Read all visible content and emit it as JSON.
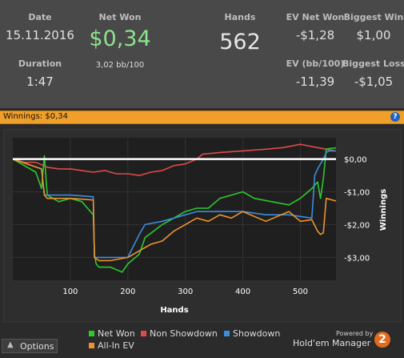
{
  "stats": {
    "date": {
      "label": "Date",
      "value": "15.11.2016"
    },
    "duration": {
      "label": "Duration",
      "value": "1:47"
    },
    "net_won": {
      "label": "Net Won",
      "value": "$0,34",
      "sub": "3,02 bb/100",
      "color": "#8fe28f"
    },
    "hands": {
      "label": "Hands",
      "value": "562"
    },
    "ev_net_won": {
      "label": "EV Net Won",
      "value": "-$1,28"
    },
    "ev_bb100": {
      "label": "EV (bb/100)",
      "value": "-11,39"
    },
    "biggest_win": {
      "label": "Biggest Win",
      "value": "$1,00"
    },
    "biggest_loss": {
      "label": "Biggest Loss",
      "value": "-$1,05"
    }
  },
  "bar": {
    "title": "Winnings: $0,34",
    "help_icon": "question-icon",
    "help_text": "?",
    "color": "#f0a02a"
  },
  "chart_data": {
    "type": "line",
    "xlabel": "Hands",
    "ylabel": "Winnings",
    "xlim": [
      0,
      562
    ],
    "ylim": [
      -3.7,
      0.65
    ],
    "x_ticks": [
      100,
      200,
      300,
      400,
      500
    ],
    "y_ticks": [
      0,
      -1,
      -2,
      -3
    ],
    "y_tick_labels": [
      "$0,00",
      "-$1,00",
      "-$2,00",
      "-$3,00"
    ],
    "zero_line": true,
    "series": [
      {
        "name": "Non Showdown",
        "color": "#e04a4a",
        "x": [
          0,
          20,
          40,
          60,
          80,
          100,
          120,
          140,
          160,
          180,
          200,
          220,
          240,
          260,
          280,
          300,
          320,
          330,
          360,
          400,
          440,
          470,
          500,
          530,
          545,
          562
        ],
        "y": [
          0,
          -0.1,
          -0.1,
          -0.25,
          -0.3,
          -0.3,
          -0.35,
          -0.4,
          -0.35,
          -0.45,
          -0.45,
          -0.5,
          -0.4,
          -0.35,
          -0.2,
          -0.15,
          0,
          0.15,
          0.2,
          0.25,
          0.3,
          0.35,
          0.45,
          0.35,
          0.3,
          0.25
        ]
      },
      {
        "name": "Net Won",
        "color": "#2fc82f",
        "x": [
          0,
          40,
          50,
          55,
          60,
          80,
          100,
          120,
          140,
          142,
          145,
          150,
          170,
          190,
          200,
          220,
          230,
          245,
          260,
          280,
          300,
          320,
          340,
          360,
          380,
          400,
          420,
          450,
          480,
          500,
          520,
          530,
          535,
          540,
          545,
          550,
          562
        ],
        "y": [
          0,
          -0.4,
          -0.9,
          0.1,
          -1.1,
          -1.3,
          -1.2,
          -1.3,
          -1.7,
          -2.9,
          -3.2,
          -3.3,
          -3.3,
          -3.45,
          -3.2,
          -2.9,
          -2.4,
          -2.2,
          -2.0,
          -1.8,
          -1.6,
          -1.5,
          -1.5,
          -1.2,
          -1.1,
          -1.0,
          -1.2,
          -1.3,
          -1.4,
          -1.2,
          -0.9,
          -0.7,
          -1.2,
          -0.6,
          0.3,
          0.32,
          0.34
        ]
      },
      {
        "name": "Showdown",
        "color": "#3b8ede",
        "x": [
          0,
          50,
          55,
          60,
          100,
          140,
          142,
          200,
          220,
          230,
          260,
          280,
          300,
          320,
          340,
          360,
          400,
          440,
          480,
          520,
          525,
          530,
          540,
          545,
          550,
          562
        ],
        "y": [
          0,
          -0.3,
          -1.1,
          -1.1,
          -1.1,
          -1.15,
          -3.0,
          -3.0,
          -2.3,
          -2.0,
          -1.9,
          -1.8,
          -1.7,
          -1.6,
          -1.6,
          -1.6,
          -1.6,
          -1.7,
          -1.7,
          -1.8,
          -0.5,
          -0.3,
          0,
          0.2,
          0.25,
          0.25
        ]
      },
      {
        "name": "All-In EV",
        "color": "#f0912e",
        "x": [
          0,
          50,
          55,
          60,
          100,
          140,
          142,
          150,
          170,
          200,
          220,
          240,
          260,
          280,
          300,
          320,
          340,
          360,
          380,
          400,
          440,
          480,
          500,
          520,
          530,
          535,
          540,
          545,
          562
        ],
        "y": [
          0,
          -0.3,
          -1.1,
          -1.2,
          -1.2,
          -1.25,
          -3.0,
          -3.1,
          -3.1,
          -3.0,
          -2.8,
          -2.6,
          -2.5,
          -2.2,
          -2.0,
          -1.8,
          -1.9,
          -1.7,
          -1.8,
          -1.6,
          -1.9,
          -1.6,
          -1.9,
          -1.85,
          -2.2,
          -2.3,
          -2.25,
          -1.2,
          -1.28
        ]
      }
    ]
  },
  "footer": {
    "options_label": "Options",
    "options_icon": "caret-up-icon",
    "powered_by": "Powered by",
    "brand": "Hold'em Manager",
    "brand_badge": "2",
    "legend": [
      "Net Won",
      "Non Showdown",
      "Showdown",
      "All-In EV"
    ]
  }
}
